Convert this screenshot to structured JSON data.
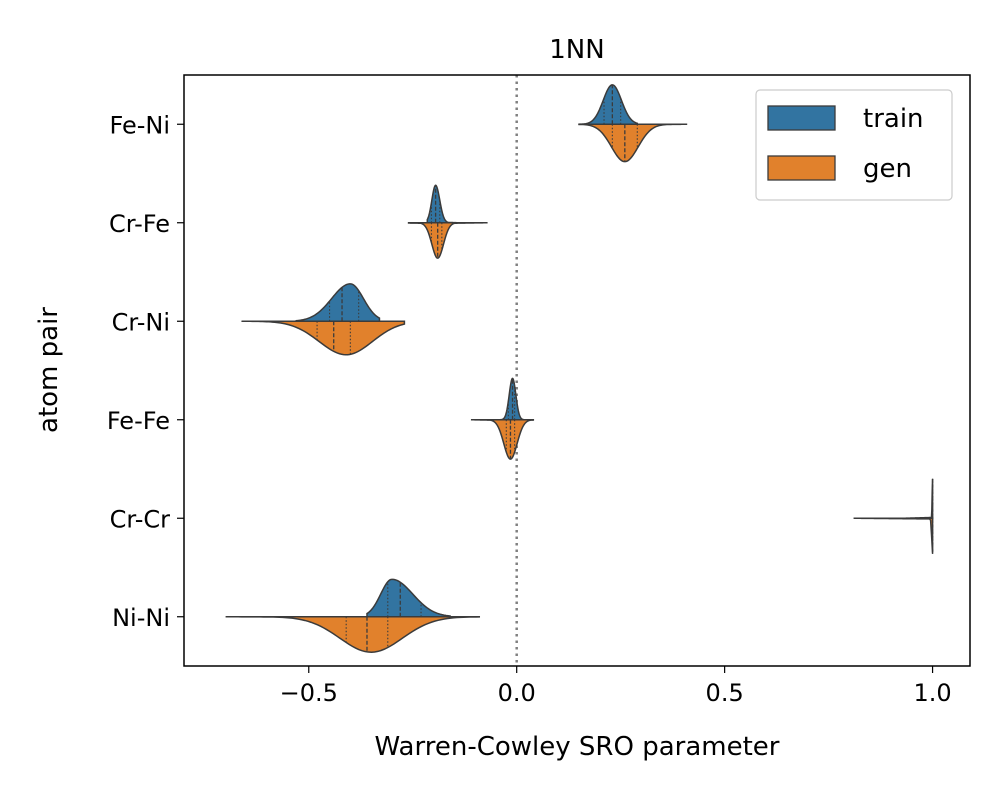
{
  "chart_data": {
    "type": "violin",
    "title": "1NN",
    "xlabel": "Warren-Cowley SRO parameter",
    "ylabel": "atom pair",
    "xlim": [
      -0.8,
      1.09
    ],
    "xticks": [
      -0.5,
      0.0,
      0.5,
      1.0
    ],
    "xtick_labels": [
      "−0.5",
      "0.0",
      "0.5",
      "1.0"
    ],
    "reference_line": {
      "x": 0.0,
      "style": "dotted",
      "color": "#808080"
    },
    "legend": {
      "placement": "top-right",
      "entries": [
        "train",
        "gen"
      ]
    },
    "categories": [
      "Fe-Ni",
      "Cr-Fe",
      "Cr-Ni",
      "Fe-Fe",
      "Cr-Cr",
      "Ni-Ni"
    ],
    "series": [
      {
        "name": "train",
        "color": "#3274a1",
        "side": "upper",
        "distributions": [
          {
            "min": 0.15,
            "max": 0.29,
            "mode": 0.23,
            "spread": 0.022,
            "peak": 0.4,
            "quartiles": [
              0.21,
              0.23,
              0.25
            ]
          },
          {
            "min": -0.215,
            "max": -0.14,
            "mode": -0.195,
            "spread": 0.01,
            "peak": 0.38,
            "quartiles": [
              -0.205,
              -0.195,
              -0.185
            ]
          },
          {
            "min": -0.53,
            "max": -0.33,
            "mode": -0.4,
            "spread": 0.045,
            "peak": 0.38,
            "quartiles": [
              -0.45,
              -0.42,
              -0.38
            ]
          },
          {
            "min": -0.04,
            "max": 0.015,
            "mode": -0.01,
            "spread": 0.008,
            "peak": 0.42,
            "quartiles": [
              -0.02,
              -0.01,
              -0.005
            ]
          },
          {
            "min": 0.93,
            "max": 1.0,
            "mode": 1.0,
            "spread": 0.001,
            "peak": 0.4,
            "quartiles": [
              1.0,
              1.0,
              1.0
            ]
          },
          {
            "min": -0.36,
            "max": -0.16,
            "mode": -0.3,
            "spread": 0.05,
            "peak": 0.38,
            "quartiles": [
              -0.31,
              -0.28,
              -0.23
            ]
          }
        ]
      },
      {
        "name": "gen",
        "color": "#e1812c",
        "side": "lower",
        "distributions": [
          {
            "min": 0.15,
            "max": 0.41,
            "mode": 0.26,
            "spread": 0.032,
            "peak": 0.38,
            "quartiles": [
              0.23,
              0.26,
              0.29
            ]
          },
          {
            "min": -0.26,
            "max": -0.07,
            "mode": -0.19,
            "spread": 0.014,
            "peak": 0.36,
            "quartiles": [
              -0.205,
              -0.19,
              -0.18
            ]
          },
          {
            "min": -0.66,
            "max": -0.27,
            "mode": -0.41,
            "spread": 0.065,
            "peak": 0.34,
            "quartiles": [
              -0.48,
              -0.44,
              -0.4
            ]
          },
          {
            "min": -0.11,
            "max": 0.04,
            "mode": -0.015,
            "spread": 0.016,
            "peak": 0.4,
            "quartiles": [
              -0.025,
              -0.015,
              -0.005
            ]
          },
          {
            "min": 0.81,
            "max": 1.0,
            "mode": 1.0,
            "spread": 0.002,
            "peak": 0.36,
            "quartiles": [
              1.0,
              1.0,
              1.0
            ]
          },
          {
            "min": -0.7,
            "max": -0.09,
            "mode": -0.35,
            "spread": 0.075,
            "peak": 0.36,
            "quartiles": [
              -0.41,
              -0.36,
              -0.31
            ]
          }
        ]
      }
    ]
  }
}
